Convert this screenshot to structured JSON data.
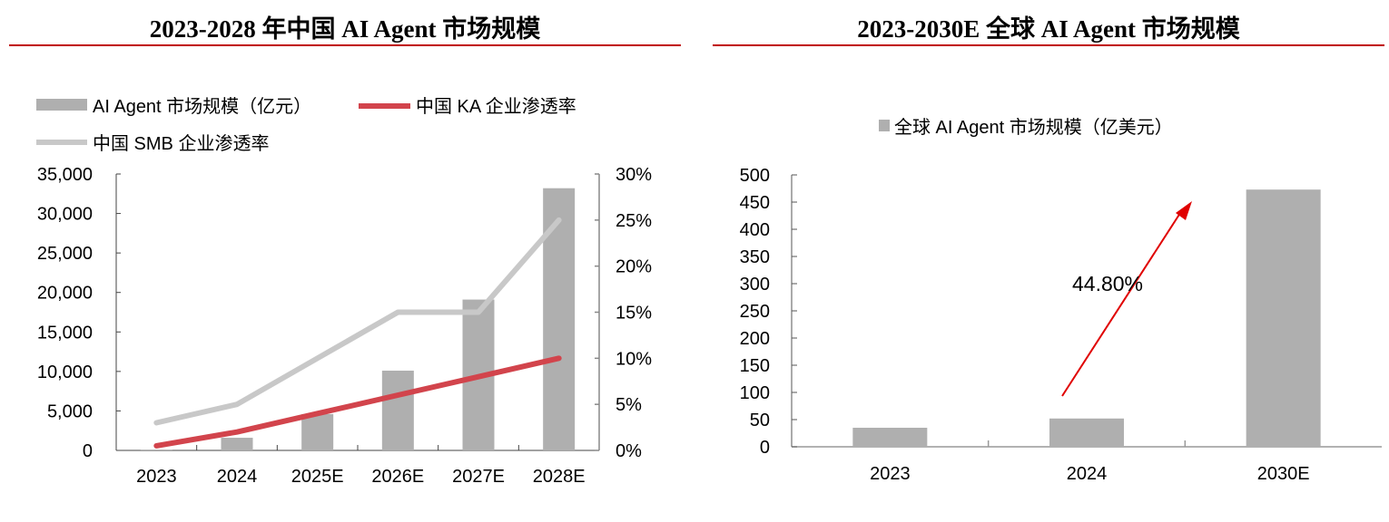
{
  "chart_data": [
    {
      "type": "bar+line",
      "title": "2023-2028 年中国 AI Agent 市场规模",
      "categories": [
        "2023",
        "2024",
        "2025E",
        "2026E",
        "2027E",
        "2028E"
      ],
      "series": [
        {
          "name": "AI Agent 市场规模（亿元）",
          "type": "bar",
          "axis": "left",
          "color": "#afafaf",
          "values": [
            100,
            1600,
            4600,
            10100,
            19100,
            33200
          ]
        },
        {
          "name": "中国 KA 企业渗透率",
          "type": "line",
          "axis": "right",
          "color": "#d2444c",
          "values": [
            0.5,
            2,
            4,
            6,
            8,
            10
          ]
        },
        {
          "name": "中国 SMB 企业渗透率",
          "type": "line",
          "axis": "right",
          "color": "#c8c8c8",
          "values": [
            3,
            5,
            10,
            15,
            15,
            25
          ]
        }
      ],
      "ylim": [
        0,
        35000
      ],
      "yticks": [
        "0",
        "5,000",
        "10,000",
        "15,000",
        "20,000",
        "25,000",
        "30,000",
        "35,000"
      ],
      "y2lim": [
        0,
        30
      ],
      "y2ticks": [
        "0%",
        "5%",
        "10%",
        "15%",
        "20%",
        "25%",
        "30%"
      ],
      "legend": "top",
      "grid": false
    },
    {
      "type": "bar",
      "title": "2023-2030E 全球 AI Agent 市场规模",
      "categories": [
        "2023",
        "2024",
        "2030E"
      ],
      "series": [
        {
          "name": "全球 AI Agent 市场规模（亿美元）",
          "color": "#afafaf",
          "values": [
            35,
            52,
            473
          ]
        }
      ],
      "ylim": [
        0,
        500
      ],
      "yticks": [
        "0",
        "50",
        "100",
        "150",
        "200",
        "250",
        "300",
        "350",
        "400",
        "450",
        "500"
      ],
      "annotation": "44.80%",
      "annotation_color": "#e00000",
      "legend": "top",
      "grid": false
    }
  ]
}
